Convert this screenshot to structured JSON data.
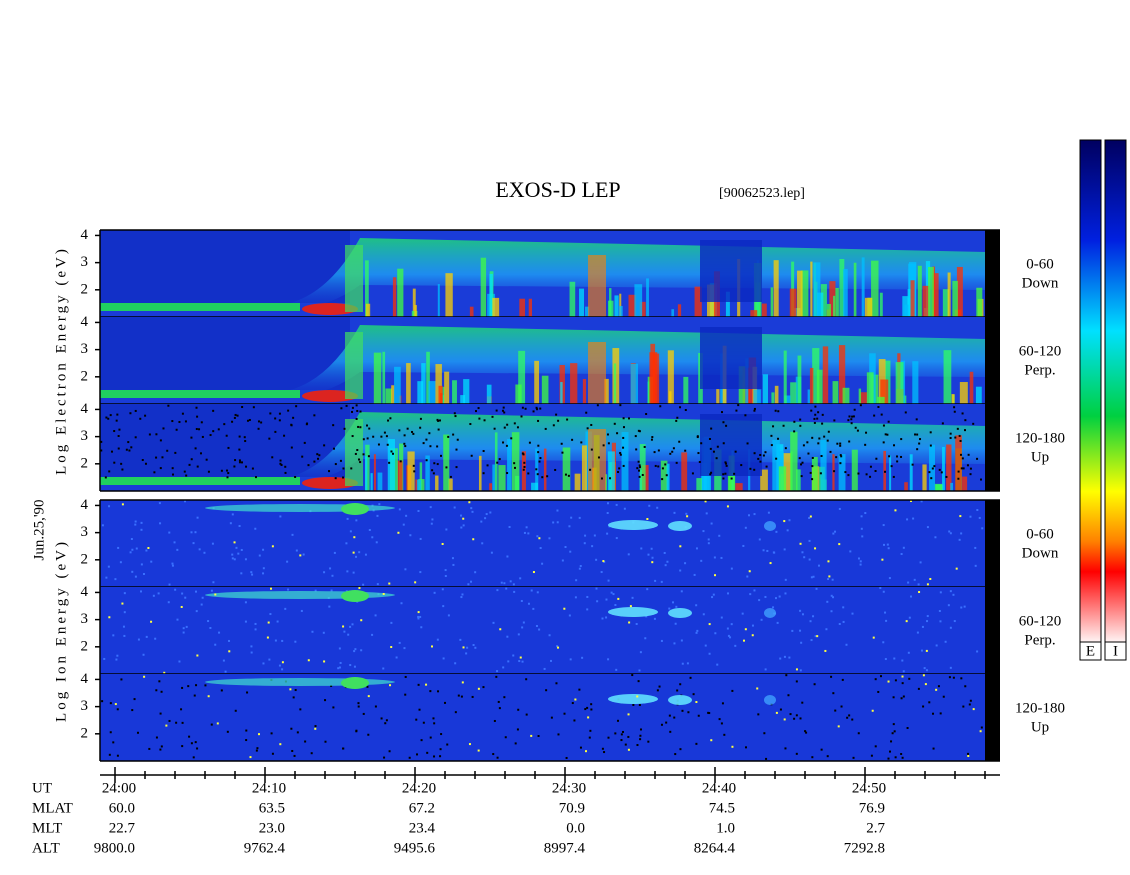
{
  "chart_data": {
    "type": "spectrogram",
    "title": "EXOS-D LEP",
    "file_label": "[90062523.lep]",
    "date_label": "Jun.25,'90",
    "ylim": [
      1,
      4.2
    ],
    "yticks": [
      2,
      3,
      4
    ],
    "xlim": [
      -1,
      59
    ],
    "xticks": [
      {
        "value": 0,
        "label": "24:00"
      },
      {
        "value": 10,
        "label": "24:10"
      },
      {
        "value": 20,
        "label": "24:20"
      },
      {
        "value": 30,
        "label": "24:30"
      },
      {
        "value": 40,
        "label": "24:40"
      },
      {
        "value": 50,
        "label": "24:50"
      }
    ],
    "xminorticks": [
      2,
      4,
      6,
      8,
      12,
      14,
      16,
      18,
      22,
      24,
      26,
      28,
      32,
      34,
      36,
      38,
      42,
      44,
      46,
      48,
      52,
      54,
      56,
      58
    ],
    "groups": [
      {
        "name": "Log Electron Energy (eV)",
        "panels": [
          {
            "angle": "0-60",
            "direction": "Down"
          },
          {
            "angle": "60-120",
            "direction": "Perp."
          },
          {
            "angle": "120-180",
            "direction": "Up"
          }
        ]
      },
      {
        "name": "Log Ion Energy (eV)",
        "panels": [
          {
            "angle": "0-60",
            "direction": "Down"
          },
          {
            "angle": "60-120",
            "direction": "Perp."
          },
          {
            "angle": "120-180",
            "direction": "Up"
          }
        ]
      }
    ],
    "x_axis_name": "UT",
    "ephemeris": [
      {
        "name": "MLAT",
        "values": [
          "60.0",
          "63.5",
          "67.2",
          "70.9",
          "74.5",
          "76.9"
        ]
      },
      {
        "name": "MLT",
        "values": [
          "22.7",
          "23.0",
          "23.4",
          "0.0",
          "1.0",
          "2.7"
        ]
      },
      {
        "name": "ALT",
        "values": [
          "9800.0",
          "9762.4",
          "9495.6",
          "8997.4",
          "8264.4",
          "7292.8"
        ]
      }
    ],
    "colorbar_labels": [
      "E",
      "I"
    ]
  }
}
